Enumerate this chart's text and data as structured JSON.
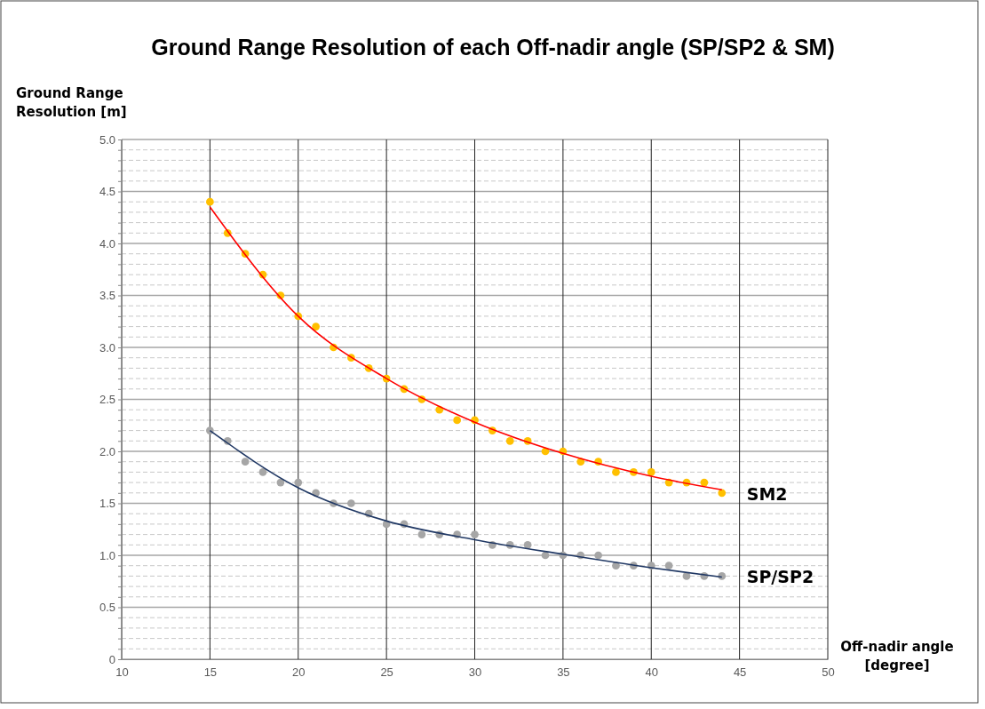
{
  "chart_data": {
    "type": "scatter",
    "title": "Ground Range Resolution of each Off-nadir angle (SP/SP2 & SM)",
    "xlabel": "Off-nadir angle\n[degree]",
    "ylabel": "Ground Range\nResolution [m]",
    "xlim": [
      10,
      50
    ],
    "xticks": [
      10,
      15,
      20,
      25,
      30,
      35,
      40,
      45,
      50
    ],
    "ylim": [
      0,
      5
    ],
    "yticks": [
      0,
      {
        "value": 0.1,
        "label": null
      },
      {
        "value": 0.2,
        "label": null
      },
      {
        "value": 0.3,
        "label": null
      },
      {
        "value": 0.4,
        "label": null
      },
      "0.5",
      {
        "value": 0.6,
        "label": null
      },
      {
        "value": 0.7,
        "label": null
      },
      {
        "value": 0.8,
        "label": null
      },
      {
        "value": 0.9,
        "label": null
      },
      {
        "value": 1,
        "label": "1.0"
      },
      {
        "value": 1.1,
        "label": null
      },
      {
        "value": 1.2,
        "label": null
      },
      {
        "value": 1.3,
        "label": null
      },
      {
        "value": 1.4,
        "label": null
      },
      1.5,
      {
        "value": 1.6,
        "label": null
      },
      {
        "value": 1.7,
        "label": null
      },
      {
        "value": 1.8,
        "label": null
      },
      {
        "value": 1.9,
        "label": null
      },
      {
        "value": 2,
        "label": "2.0"
      },
      {
        "value": 2.1,
        "label": null
      },
      {
        "value": 2.2,
        "label": null
      },
      {
        "value": 2.3,
        "label": null
      },
      {
        "value": 2.4,
        "label": null
      },
      2.5,
      {
        "value": 2.6,
        "label": null
      },
      {
        "value": 2.7,
        "label": null
      },
      {
        "value": 2.8,
        "label": null
      },
      {
        "value": 2.9,
        "label": null
      },
      {
        "value": 3,
        "label": "3.0"
      },
      {
        "value": 3.1,
        "label": null
      },
      {
        "value": 3.2,
        "label": null
      },
      {
        "value": 3.3,
        "label": null
      },
      {
        "value": 3.4,
        "label": null
      },
      3.5,
      {
        "value": 3.6,
        "label": null
      },
      {
        "value": 3.7,
        "label": null
      },
      {
        "value": 3.8,
        "label": null
      },
      {
        "value": 3.9,
        "label": null
      },
      {
        "value": 4,
        "label": "4.0"
      },
      {
        "value": 4.1,
        "label": null
      },
      {
        "value": 4.2,
        "label": null
      },
      {
        "value": 4.3,
        "label": null
      },
      {
        "value": 4.4,
        "label": null
      },
      4.5,
      {
        "value": 4.6,
        "label": null
      },
      {
        "value": 4.7,
        "label": null
      },
      {
        "value": 4.8,
        "label": null
      },
      {
        "value": 4.9,
        "label": null
      },
      {
        "value": 5,
        "label": "5.0"
      }
    ],
    "grid": true,
    "legend": false,
    "marker": "circle",
    "x": [
      15,
      16,
      17,
      18,
      19,
      20,
      21,
      22,
      23,
      24,
      25,
      26,
      27,
      28,
      29,
      30,
      31,
      32,
      33,
      34,
      35,
      36,
      37,
      38,
      39,
      40,
      41,
      42,
      43,
      44
    ],
    "series": [
      {
        "name": "SM2",
        "color": "#ffc000",
        "values": [
          4.4,
          4.1,
          3.9,
          3.7,
          3.5,
          3.3,
          3.2,
          3.0,
          2.9,
          2.8,
          2.7,
          2.6,
          2.5,
          2.4,
          2.3,
          2.3,
          2.2,
          2.1,
          2.1,
          2.0,
          2.0,
          1.9,
          1.9,
          1.8,
          1.8,
          1.8,
          1.7,
          1.7,
          1.7,
          1.6
        ]
      },
      {
        "type": "line",
        "color": "#ff0000",
        "marker": "none",
        "line_style": "solid",
        "x": [
          15,
          20,
          25,
          30,
          35,
          40,
          44
        ],
        "values": [
          4.35,
          3.3,
          2.7,
          2.28,
          1.98,
          1.76,
          1.63
        ]
      },
      {
        "name": "SP/SP2",
        "color": "#a6a6a6",
        "values": [
          2.2,
          2.1,
          1.9,
          1.8,
          1.7,
          1.7,
          1.6,
          1.5,
          1.5,
          1.4,
          1.3,
          1.3,
          1.2,
          1.2,
          1.2,
          1.2,
          1.1,
          1.1,
          1.1,
          1.0,
          1.0,
          1.0,
          1.0,
          0.9,
          0.9,
          0.9,
          0.9,
          0.8,
          0.8,
          0.8
        ]
      },
      {
        "type": "line",
        "color": "#203864",
        "marker": "none",
        "line_style": "solid",
        "x": [
          15,
          20,
          25,
          30,
          35,
          40,
          44
        ],
        "values": [
          2.2,
          1.65,
          1.33,
          1.15,
          1.01,
          0.88,
          0.79
        ]
      }
    ]
  }
}
